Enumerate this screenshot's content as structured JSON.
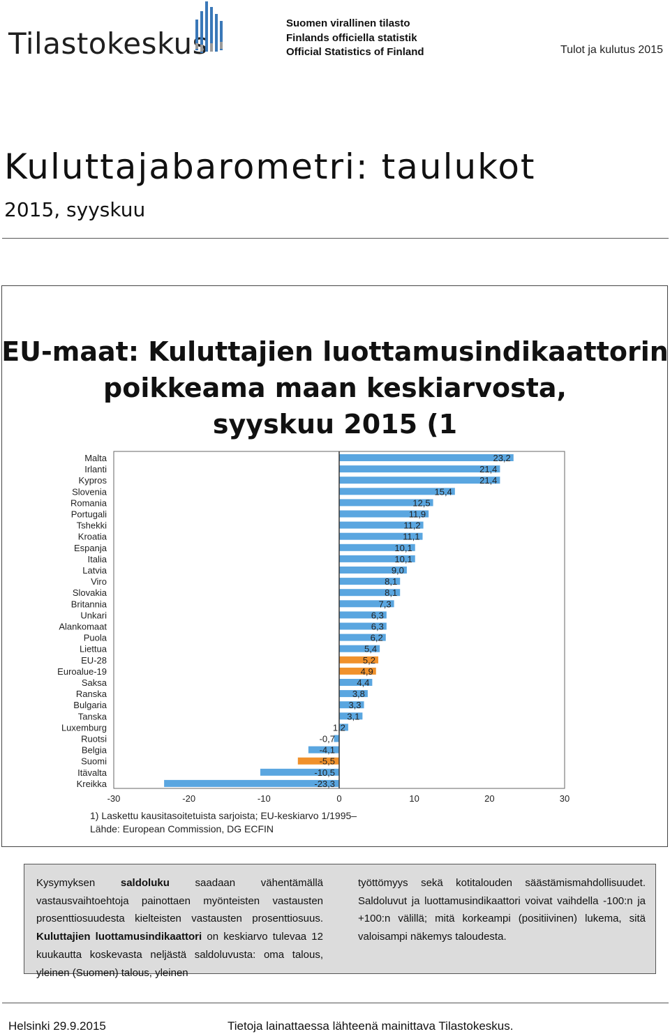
{
  "header": {
    "logo_text": "Tilastokeskus",
    "org_lines": [
      "Suomen virallinen tilasto",
      "Finlands officiella statistik",
      "Official Statistics of Finland"
    ],
    "series_name": "Tulot ja kulutus 2015"
  },
  "title": "Kuluttajabarometri: taulukot",
  "subtitle": "2015, syyskuu",
  "chart_data": {
    "type": "bar",
    "orientation": "horizontal",
    "title_lines": [
      "EU-maat: Kuluttajien luottamusindikaattorin",
      "poikkeama maan keskiarvosta,",
      "syyskuu 2015 (1"
    ],
    "categories": [
      "Malta",
      "Irlanti",
      "Kypros",
      "Slovenia",
      "Romania",
      "Portugali",
      "Tshekki",
      "Kroatia",
      "Espanja",
      "Italia",
      "Latvia",
      "Viro",
      "Slovakia",
      "Britannia",
      "Unkari",
      "Alankomaat",
      "Puola",
      "Liettua",
      "EU-28",
      "Euroalue-19",
      "Saksa",
      "Ranska",
      "Bulgaria",
      "Tanska",
      "Luxemburg",
      "Ruotsi",
      "Belgia",
      "Suomi",
      "Itävalta",
      "Kreikka"
    ],
    "values": [
      23.2,
      21.4,
      21.4,
      15.4,
      12.5,
      11.9,
      11.2,
      11.1,
      10.1,
      10.1,
      9.0,
      8.1,
      8.1,
      7.3,
      6.3,
      6.3,
      6.2,
      5.4,
      5.2,
      4.9,
      4.4,
      3.8,
      3.3,
      3.1,
      1.2,
      -0.7,
      -4.1,
      -5.5,
      -10.5,
      -23.3
    ],
    "value_labels": [
      "23,2",
      "21,4",
      "21,4",
      "15,4",
      "12,5",
      "11,9",
      "11,2",
      "11,1",
      "10,1",
      "10,1",
      "9,0",
      "8,1",
      "8,1",
      "7,3",
      "6,3",
      "6,3",
      "6,2",
      "5,4",
      "5,2",
      "4,9",
      "4,4",
      "3,8",
      "3,3",
      "3,1",
      "1,2",
      "-0,7",
      "-4,1",
      "-5,5",
      "-10,5",
      "-23,3"
    ],
    "highlight_categories": [
      "EU-28",
      "Euroalue-19",
      "Suomi"
    ],
    "colors": {
      "default": "#5aa6e0",
      "highlight": "#f0912c"
    },
    "xlim": [
      -30,
      30
    ],
    "xticks": [
      -30,
      -20,
      -10,
      0,
      10,
      20,
      30
    ],
    "xtick_labels": [
      "-30",
      "-20",
      "-10",
      "0",
      "10",
      "20",
      "30"
    ],
    "notes": [
      "1) Laskettu kausitasoitetuista sarjoista; EU-keskiarvo 1/1995–",
      "Lähde: European Commission, DG ECFIN"
    ]
  },
  "info": {
    "left_paragraph_html": "Kysymyksen <b>saldoluku</b> saadaan vähentämällä vastausvaihto­ehtoja painottaen myönteisten vastausten prosenttiosuudesta kielteisten vastausten prosenttiosuus. <b>Kuluttajien luottamusin­dikaattori</b> on keskiarvo tulevaa 12 kuukautta koskevasta nel­jästä saldoluvusta: oma talous, yleinen (Suomen) talous, yleinen",
    "right_paragraph": "työttömyys sekä kotitalouden säästämismahdollisuudet. Saldo­luvut ja luottamusindikaattori voivat vaihdella -100:n ja +100:n välillä; mitä korkeampi (positiivinen) lukema, sitä valoisampi nä­kemys taloudesta."
  },
  "footer": {
    "left": "Helsinki 29.9.2015",
    "right": "Tietoja lainattaessa lähteenä mainittava Tilastokeskus."
  }
}
